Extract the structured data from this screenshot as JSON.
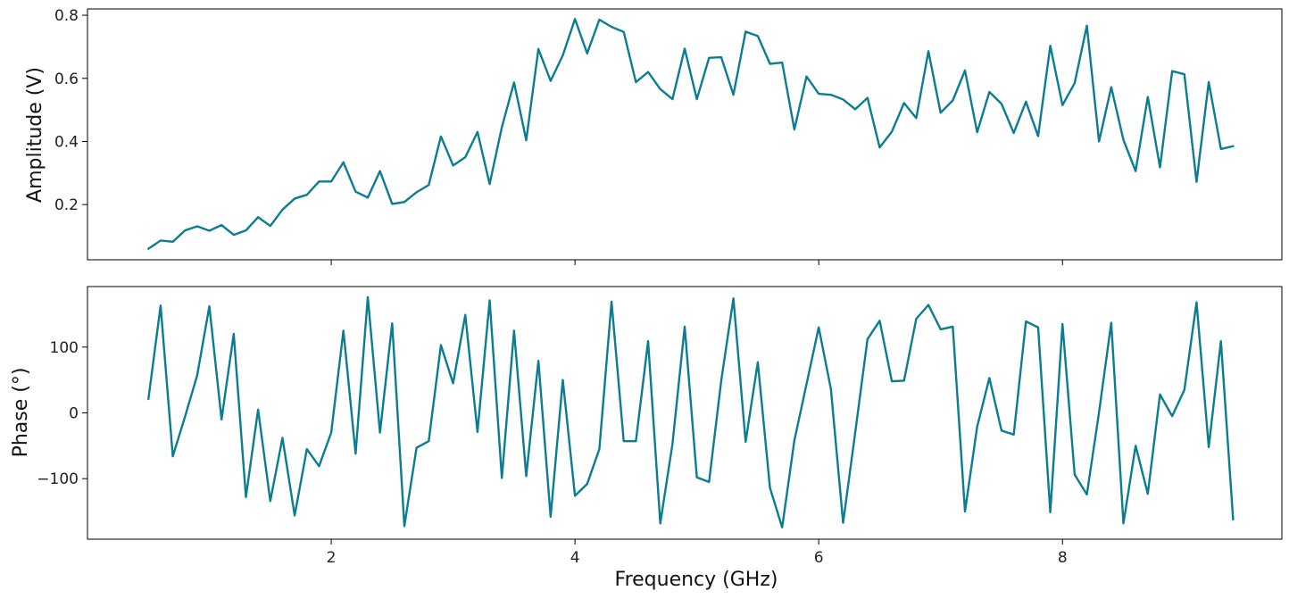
{
  "chart_data": [
    {
      "type": "line",
      "panel": "top",
      "ylabel": "Amplitude (V)",
      "xlabel": "",
      "xlim": [
        0,
        9.8
      ],
      "ylim": [
        0.025,
        0.82
      ],
      "xticks": [
        2,
        4,
        6,
        8
      ],
      "yticks": [
        0.2,
        0.4,
        0.6,
        0.8
      ],
      "x_tick_labels_visible": false,
      "grid": false,
      "color": "#0a7d92",
      "x": [
        0.5,
        0.6,
        0.7,
        0.8,
        0.9,
        1.0,
        1.1,
        1.2,
        1.3,
        1.4,
        1.5,
        1.6,
        1.7,
        1.8,
        1.9,
        2.0,
        2.1,
        2.2,
        2.3,
        2.4,
        2.5,
        2.6,
        2.7,
        2.8,
        2.9,
        3.0,
        3.1,
        3.2,
        3.3,
        3.4,
        3.5,
        3.6,
        3.7,
        3.8,
        3.9,
        4.0,
        4.1,
        4.2,
        4.3,
        4.4,
        4.5,
        4.6,
        4.7,
        4.8,
        4.9,
        5.0,
        5.1,
        5.2,
        5.3,
        5.4,
        5.5,
        5.6,
        5.7,
        5.8,
        5.9,
        6.0,
        6.1,
        6.2,
        6.3,
        6.4,
        6.5,
        6.6,
        6.7,
        6.8,
        6.9,
        7.0,
        7.1,
        7.2,
        7.3,
        7.4,
        7.5,
        7.6,
        7.7,
        7.8,
        7.9,
        8.0,
        8.1,
        8.2,
        8.3,
        8.4,
        8.5,
        8.6,
        8.7,
        8.8,
        8.9,
        9.0,
        9.1,
        9.2,
        9.3,
        9.4
      ],
      "y": [
        0.06,
        0.086,
        0.082,
        0.118,
        0.131,
        0.117,
        0.135,
        0.104,
        0.118,
        0.16,
        0.132,
        0.184,
        0.219,
        0.231,
        0.273,
        0.273,
        0.334,
        0.241,
        0.222,
        0.306,
        0.202,
        0.208,
        0.239,
        0.262,
        0.416,
        0.324,
        0.35,
        0.43,
        0.265,
        0.445,
        0.587,
        0.404,
        0.693,
        0.592,
        0.673,
        0.788,
        0.679,
        0.786,
        0.763,
        0.747,
        0.588,
        0.62,
        0.566,
        0.534,
        0.694,
        0.534,
        0.665,
        0.667,
        0.548,
        0.748,
        0.734,
        0.646,
        0.65,
        0.438,
        0.606,
        0.551,
        0.548,
        0.533,
        0.502,
        0.538,
        0.381,
        0.431,
        0.522,
        0.474,
        0.686,
        0.491,
        0.53,
        0.625,
        0.429,
        0.557,
        0.519,
        0.427,
        0.526,
        0.417,
        0.703,
        0.515,
        0.585,
        0.767,
        0.4,
        0.572,
        0.405,
        0.306,
        0.541,
        0.318,
        0.623,
        0.613,
        0.272,
        0.588,
        0.376,
        0.385
      ]
    },
    {
      "type": "line",
      "panel": "bottom",
      "ylabel": "Phase (°)",
      "xlabel": "Frequency (GHz)",
      "xlim": [
        0,
        9.8
      ],
      "ylim": [
        -192,
        192
      ],
      "xticks": [
        2,
        4,
        6,
        8
      ],
      "xtick_labels": [
        "2",
        "4",
        "6",
        "8"
      ],
      "yticks": [
        100,
        0,
        -100
      ],
      "ytick_labels": [
        "100",
        "0",
        "−100"
      ],
      "grid": false,
      "color": "#0a7d92",
      "x": [
        0.5,
        0.6,
        0.7,
        0.8,
        0.9,
        1.0,
        1.1,
        1.2,
        1.3,
        1.4,
        1.5,
        1.6,
        1.7,
        1.8,
        1.9,
        2.0,
        2.1,
        2.2,
        2.3,
        2.4,
        2.5,
        2.6,
        2.7,
        2.8,
        2.9,
        3.0,
        3.1,
        3.2,
        3.3,
        3.4,
        3.5,
        3.6,
        3.7,
        3.8,
        3.9,
        4.0,
        4.1,
        4.2,
        4.3,
        4.4,
        4.5,
        4.6,
        4.7,
        4.8,
        4.9,
        5.0,
        5.1,
        5.2,
        5.3,
        5.4,
        5.5,
        5.6,
        5.7,
        5.8,
        5.9,
        6.0,
        6.1,
        6.2,
        6.3,
        6.4,
        6.5,
        6.6,
        6.7,
        6.8,
        6.9,
        7.0,
        7.1,
        7.2,
        7.3,
        7.4,
        7.5,
        7.6,
        7.7,
        7.8,
        7.9,
        8.0,
        8.1,
        8.2,
        8.3,
        8.4,
        8.5,
        8.6,
        8.7,
        8.8,
        8.9,
        9.0,
        9.1,
        9.2,
        9.3,
        9.4
      ],
      "y": [
        21,
        163,
        -66,
        -6,
        57,
        162,
        -10,
        120,
        -128,
        5,
        -134,
        -38,
        -156,
        -55,
        -81,
        -30,
        125,
        -62,
        176,
        -30,
        136,
        -172,
        -53,
        -43,
        103,
        45,
        149,
        -29,
        171,
        -99,
        125,
        -96,
        79,
        -158,
        50,
        -126,
        -108,
        -55,
        169,
        -43,
        -43,
        109,
        -168,
        -47,
        131,
        -98,
        -105,
        49,
        174,
        -44,
        77,
        -114,
        -174,
        -42,
        44,
        130,
        36,
        -167,
        -29,
        112,
        140,
        48,
        49,
        143,
        164,
        127,
        131,
        -150,
        -21,
        53,
        -27,
        -33,
        139,
        130,
        -151,
        135,
        -94,
        -124,
        1,
        137,
        -168,
        -50,
        -123,
        28,
        -5,
        35,
        168,
        -52,
        109,
        -162
      ]
    }
  ]
}
